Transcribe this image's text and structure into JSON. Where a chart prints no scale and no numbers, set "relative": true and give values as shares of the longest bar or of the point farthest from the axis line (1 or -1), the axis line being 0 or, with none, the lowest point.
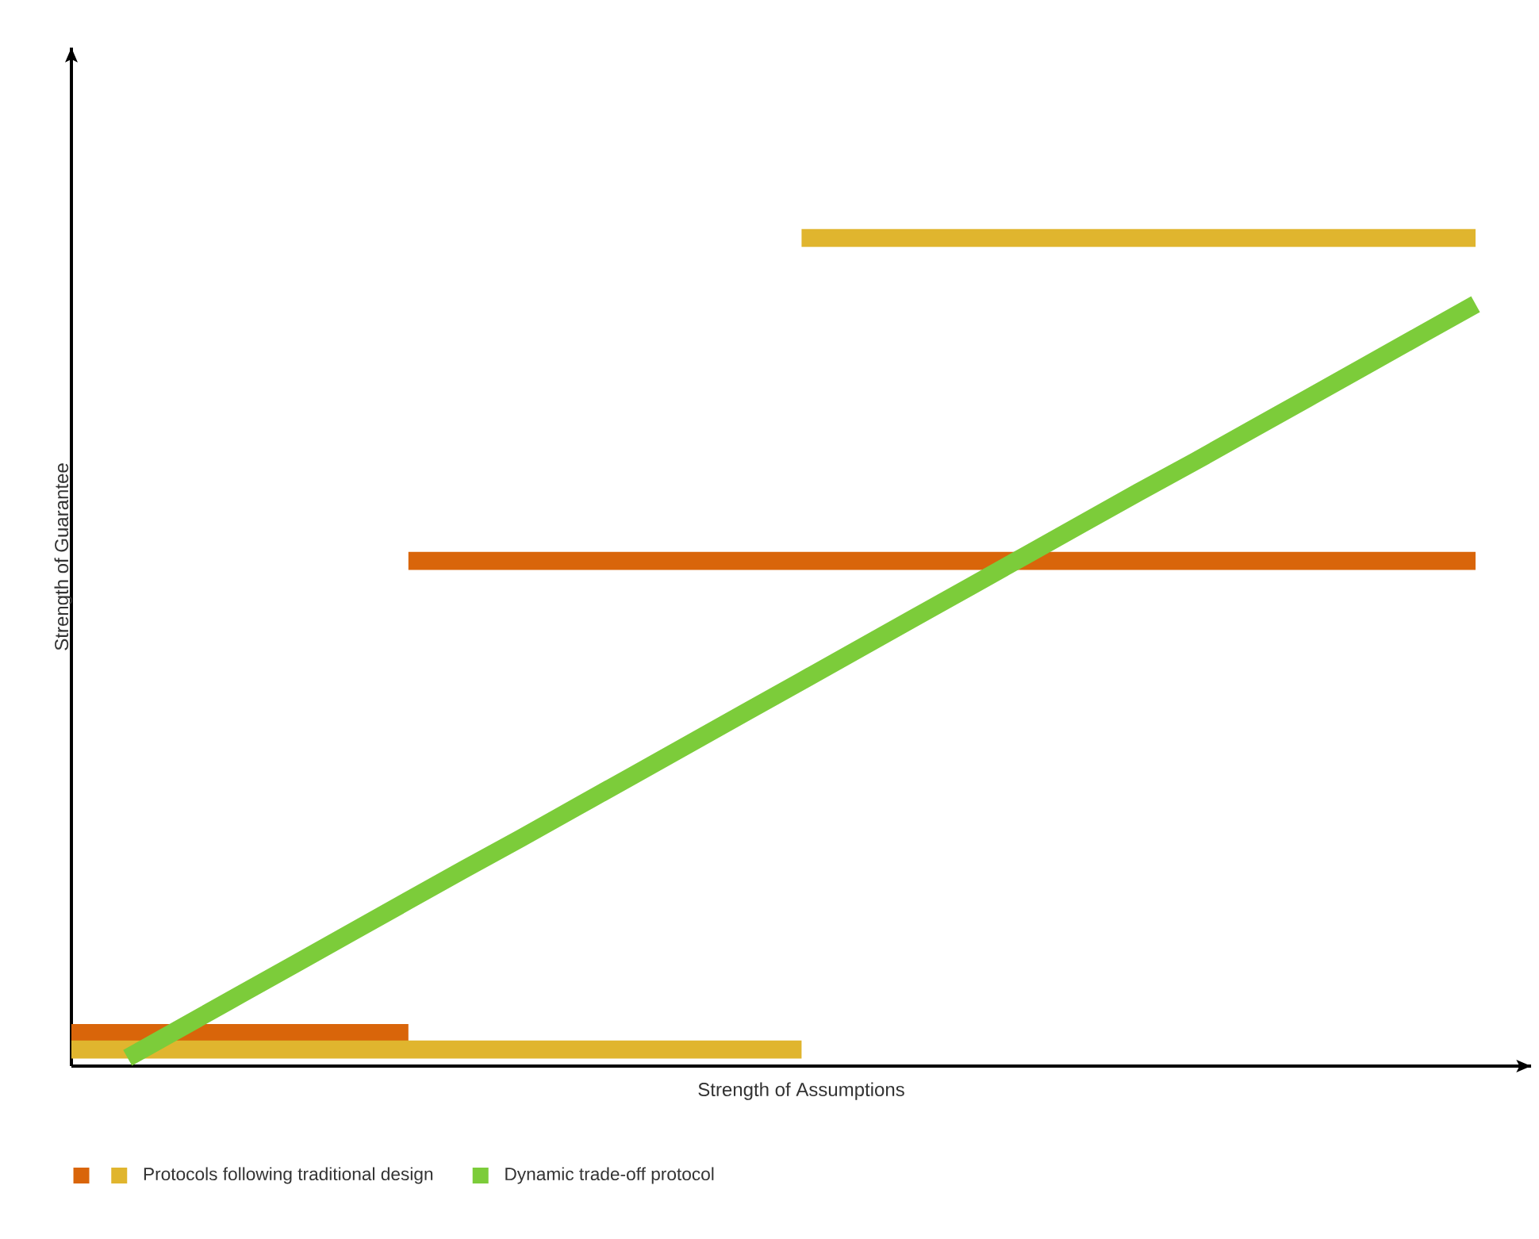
{
  "chart_data": {
    "type": "line",
    "relative": true,
    "xlabel": "Strength of Assumptions",
    "ylabel": "Strength of Guarantee",
    "legend": "bottom",
    "marker": "none",
    "line_style": "solid",
    "categories": [
      null,
      null,
      null,
      null,
      null,
      null,
      null,
      null,
      null,
      null,
      null,
      null,
      null,
      null,
      null,
      null,
      null,
      null,
      null,
      null,
      null,
      null,
      null,
      null,
      null,
      null
    ],
    "series": [
      {
        "color": "#d9650a",
        "values": [
          0.04,
          0.04,
          0.04,
          0.04,
          0.04,
          0.04,
          0.04,
          null,
          null,
          null,
          null,
          null,
          null,
          null,
          null,
          null,
          null,
          null,
          null,
          null,
          null,
          null,
          null,
          null,
          null,
          null
        ]
      },
      {
        "color": "#d9650a",
        "values": [
          null,
          null,
          null,
          null,
          null,
          null,
          0.61,
          0.61,
          0.61,
          0.61,
          0.61,
          0.61,
          0.61,
          0.61,
          0.61,
          0.61,
          0.61,
          0.61,
          0.61,
          0.61,
          0.61,
          0.61,
          0.61,
          0.61,
          0.61,
          0.61
        ]
      },
      {
        "name": "Protocols following traditional design",
        "color": "#e0b52e",
        "values": [
          0.02,
          0.02,
          0.02,
          0.02,
          0.02,
          0.02,
          0.02,
          0.02,
          0.02,
          0.02,
          0.02,
          0.02,
          0.02,
          0.02,
          null,
          null,
          null,
          null,
          null,
          null,
          null,
          null,
          null,
          null,
          null,
          null
        ]
      },
      {
        "color": "#e0b52e",
        "values": [
          null,
          null,
          null,
          null,
          null,
          null,
          null,
          null,
          null,
          null,
          null,
          null,
          null,
          1,
          1,
          1,
          1,
          1,
          1,
          1,
          1,
          1,
          1,
          1,
          1,
          1
        ]
      },
      {
        "name": "Dynamic trade-off protocol",
        "color": "#7ccc3a",
        "values": [
          null,
          0.01,
          0.048,
          0.086,
          0.124,
          0.162,
          0.2,
          0.238,
          0.275,
          0.313,
          0.351,
          0.389,
          0.427,
          0.465,
          0.503,
          0.541,
          0.579,
          0.617,
          0.655,
          0.693,
          0.73,
          0.768,
          0.806,
          0.844,
          0.882,
          0.92
        ]
      }
    ]
  }
}
